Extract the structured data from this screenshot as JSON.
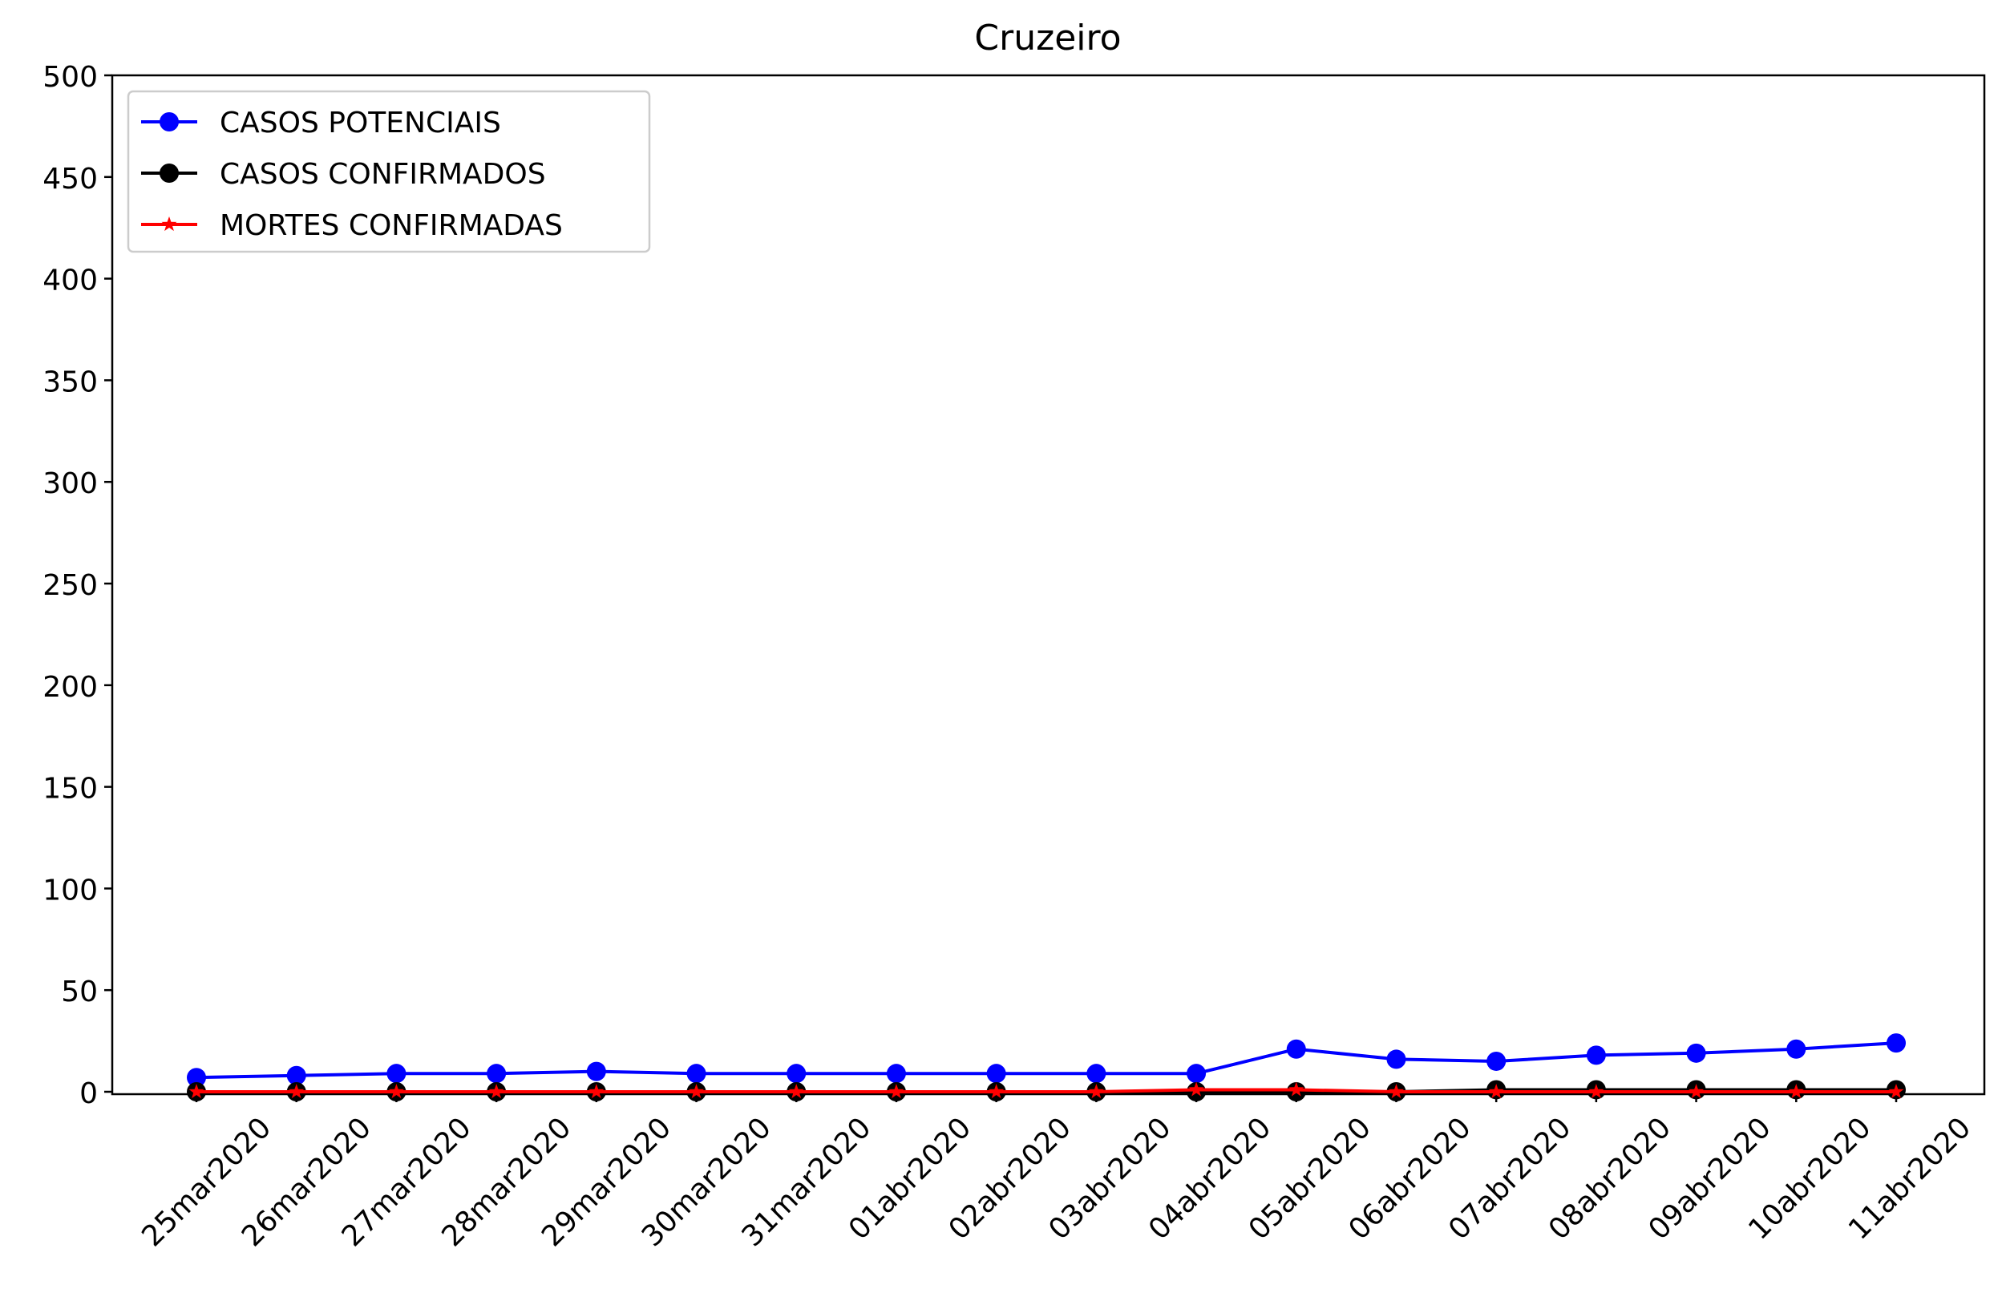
{
  "chart_data": {
    "type": "line",
    "title": "Cruzeiro",
    "xlabel": "",
    "ylabel": "",
    "categories": [
      "25mar2020",
      "26mar2020",
      "27mar2020",
      "28mar2020",
      "29mar2020",
      "30mar2020",
      "31mar2020",
      "01abr2020",
      "02abr2020",
      "03abr2020",
      "04abr2020",
      "05abr2020",
      "06abr2020",
      "07abr2020",
      "08abr2020",
      "09abr2020",
      "10abr2020",
      "11abr2020"
    ],
    "ylim": [
      0,
      500
    ],
    "yticks": [
      0,
      50,
      100,
      150,
      200,
      250,
      300,
      350,
      400,
      450,
      500
    ],
    "grid": false,
    "legend_position": "top-left",
    "series": [
      {
        "name": "CASOS POTENCIAIS",
        "color": "#0000ff",
        "marker": "circle",
        "values": [
          7,
          8,
          9,
          9,
          10,
          9,
          9,
          9,
          9,
          9,
          9,
          21,
          16,
          15,
          18,
          19,
          21,
          24
        ]
      },
      {
        "name": "CASOS CONFIRMADOS",
        "color": "#000000",
        "marker": "circle",
        "values": [
          0,
          0,
          0,
          0,
          0,
          0,
          0,
          0,
          0,
          0,
          0,
          0,
          0,
          1,
          1,
          1,
          1,
          1
        ]
      },
      {
        "name": "MORTES CONFIRMADAS",
        "color": "#ff0000",
        "marker": "star",
        "values": [
          0,
          0,
          0,
          0,
          0,
          0,
          0,
          0,
          0,
          0,
          1,
          1,
          0,
          0,
          0,
          0,
          0,
          0
        ]
      }
    ]
  }
}
